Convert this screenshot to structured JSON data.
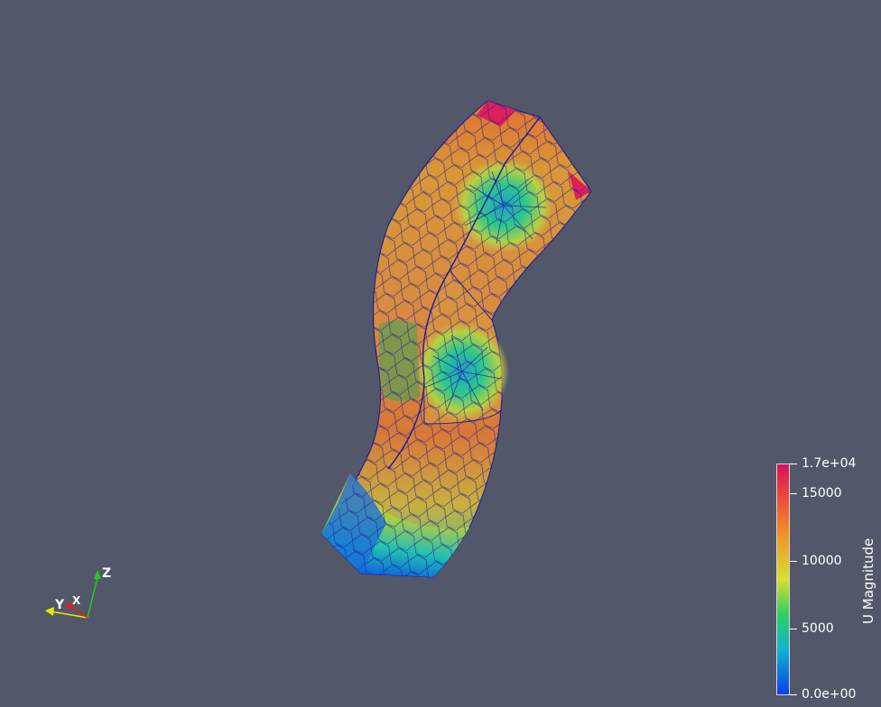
{
  "scalar_bar": {
    "title": "U Magnitude",
    "max_label": "1.7e+04",
    "min_label": "0.0e+00",
    "ticks": [
      "15000",
      "10000",
      "5000"
    ],
    "range": [
      0,
      17000
    ],
    "tick_values": [
      15000,
      10000,
      5000
    ],
    "colormap": [
      "#0a3cf0",
      "#10c8c8",
      "#30d830",
      "#e8e830",
      "#f08a20",
      "#d81e5a"
    ]
  },
  "orientation_axes": {
    "z_label": "Z",
    "y_label": "Y",
    "x_label": "X",
    "z_color": "#22cc22",
    "y_color": "#e8e800",
    "x_color": "#e02020"
  },
  "background_color": "#525869",
  "mesh_edge_color": "#1a1a9a"
}
